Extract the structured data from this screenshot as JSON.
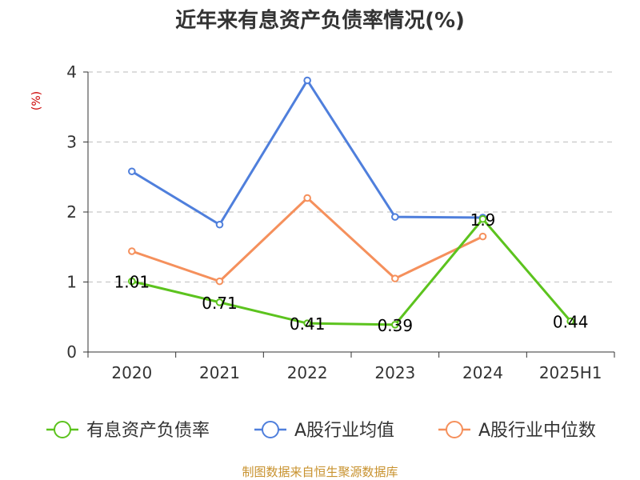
{
  "chart_data": {
    "type": "line",
    "title": "近年来有息资产负债率情况(%)",
    "ylabel": "(%)",
    "xlabel": "",
    "categories": [
      "2020",
      "2021",
      "2022",
      "2023",
      "2024",
      "2025H1"
    ],
    "yticks": [
      "0",
      "1",
      "2",
      "3",
      "4"
    ],
    "ylim": [
      0,
      4
    ],
    "grid": true,
    "legend_position": "bottom",
    "series": [
      {
        "name": "有息资产负债率",
        "color": "#5cc31e",
        "values": [
          1.01,
          0.71,
          0.41,
          0.39,
          1.9,
          0.44
        ],
        "labels": [
          "1.01",
          "0.71",
          "0.41",
          "0.39",
          "1.9",
          "0.44"
        ]
      },
      {
        "name": "A股行业均值",
        "color": "#4f7fdc",
        "values": [
          2.58,
          1.82,
          3.88,
          1.93,
          1.92,
          null
        ]
      },
      {
        "name": "A股行业中位数",
        "color": "#f5905c",
        "values": [
          1.44,
          1.01,
          2.2,
          1.05,
          1.65,
          null
        ]
      }
    ],
    "source": "制图数据来自恒生聚源数据库"
  }
}
